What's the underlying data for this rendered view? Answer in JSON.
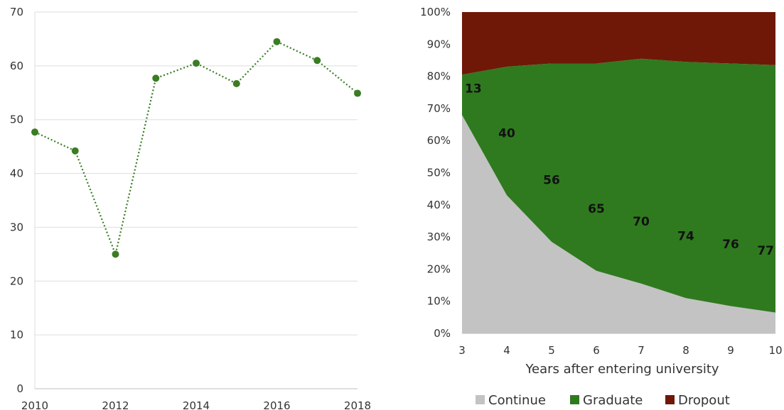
{
  "chart_data": [
    {
      "type": "line",
      "title": "",
      "xlabel": "",
      "ylabel": "",
      "x": [
        2010,
        2011,
        2012,
        2013,
        2014,
        2015,
        2016,
        2017,
        2018
      ],
      "x_tick_labels": [
        "2010",
        "2012",
        "2014",
        "2016",
        "2018"
      ],
      "y_tick_labels": [
        "0",
        "10",
        "20",
        "30",
        "40",
        "50",
        "60",
        "70"
      ],
      "ylim": [
        0,
        70
      ],
      "grid": true,
      "series": [
        {
          "values": [
            47.7,
            44.2,
            25.0,
            57.7,
            60.5,
            56.7,
            64.5,
            61.0,
            54.9
          ],
          "color": "#3a7d23",
          "line_style": "dotted",
          "marker": "circle"
        }
      ]
    },
    {
      "type": "area",
      "stacked": "percent",
      "title": "",
      "xlabel": "Years after entering university",
      "ylabel": "",
      "x": [
        3,
        4,
        5,
        6,
        7,
        8,
        9,
        10
      ],
      "x_tick_labels": [
        "3",
        "4",
        "5",
        "6",
        "7",
        "8",
        "9",
        "10"
      ],
      "y_tick_labels": [
        "0%",
        "10%",
        "20%",
        "30%",
        "40%",
        "50%",
        "60%",
        "70%",
        "80%",
        "90%",
        "100%"
      ],
      "ylim": [
        0,
        100
      ],
      "legend_position": "bottom",
      "series": [
        {
          "name": "Continue",
          "color": "#c3c3c3",
          "values": [
            68,
            43,
            28.5,
            19.5,
            15.5,
            11,
            8.5,
            6.5
          ]
        },
        {
          "name": "Graduate",
          "color": "#2f7a1f",
          "values": [
            12.5,
            40,
            55.5,
            64.5,
            70,
            73.5,
            75.5,
            77
          ]
        },
        {
          "name": "Dropout",
          "color": "#6f1807",
          "values": [
            19.5,
            17,
            16,
            16,
            14.5,
            15.5,
            16,
            16.5
          ]
        }
      ],
      "data_labels": [
        "13",
        "40",
        "56",
        "65",
        "70",
        "74",
        "76",
        "77"
      ]
    }
  ]
}
